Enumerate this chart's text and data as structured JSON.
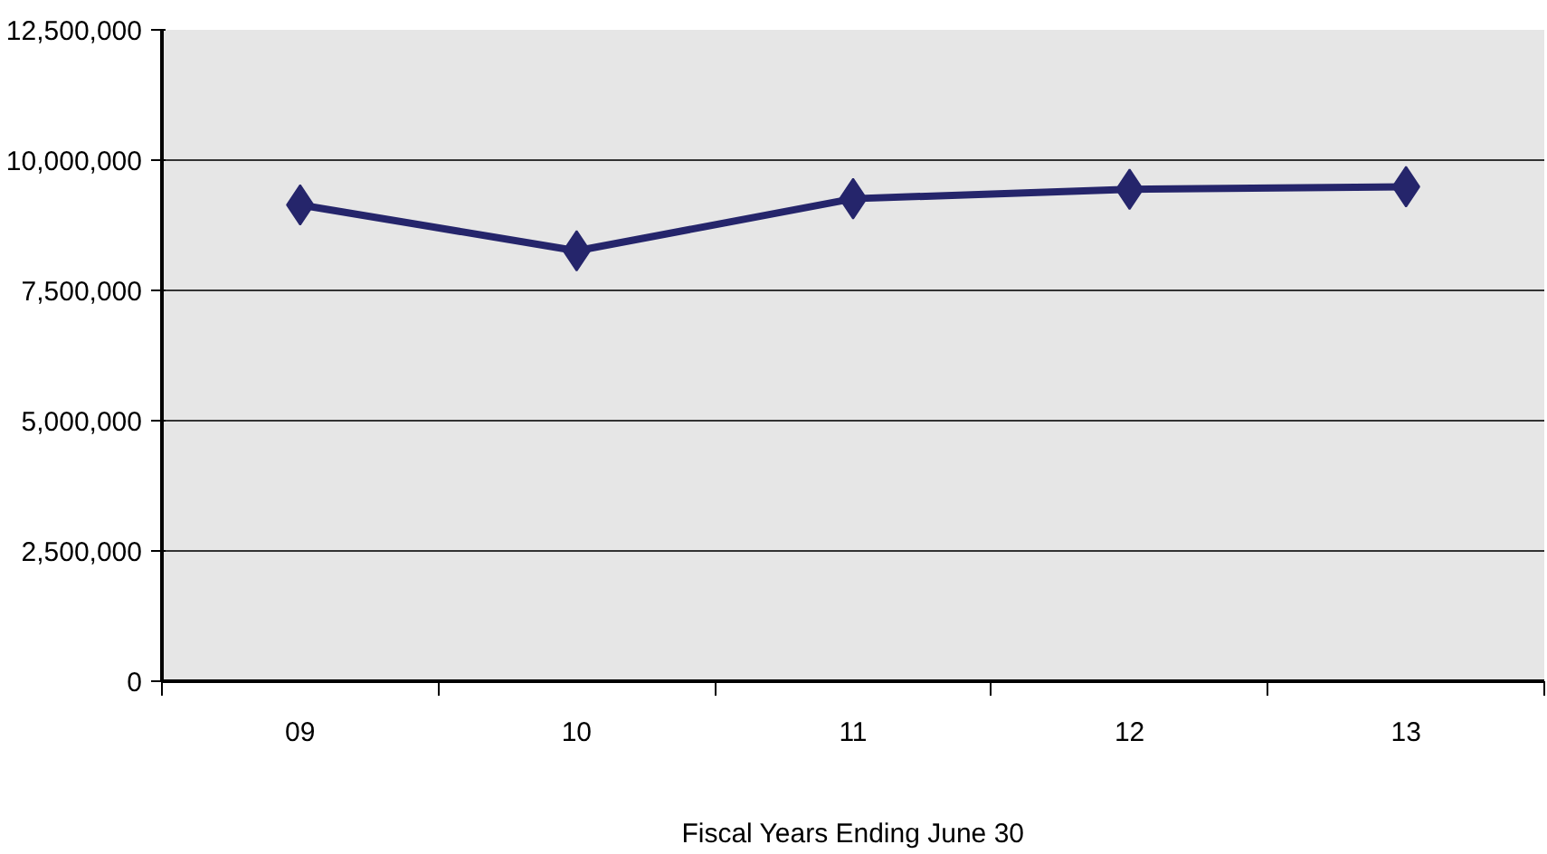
{
  "chart_data": {
    "type": "line",
    "xlabel": "Fiscal Years Ending June 30",
    "categories": [
      "09",
      "10",
      "11",
      "12",
      "13"
    ],
    "series": [
      {
        "color": "#25256b",
        "values": [
          9140000,
          8260000,
          9260000,
          9440000,
          9490000
        ]
      }
    ],
    "ylim": [
      0,
      12500000
    ],
    "yticks": [
      {
        "value": 0,
        "label": "0"
      },
      {
        "value": 2500000,
        "label": "2,500,000"
      },
      {
        "value": 5000000,
        "label": "5,000,000"
      },
      {
        "value": 7500000,
        "label": "7,500,000"
      },
      {
        "value": 10000000,
        "label": "10,000,000"
      },
      {
        "value": 12500000,
        "label": "12,500,000"
      }
    ],
    "grid": "y",
    "marker": "diamond",
    "line_style": "solid"
  }
}
